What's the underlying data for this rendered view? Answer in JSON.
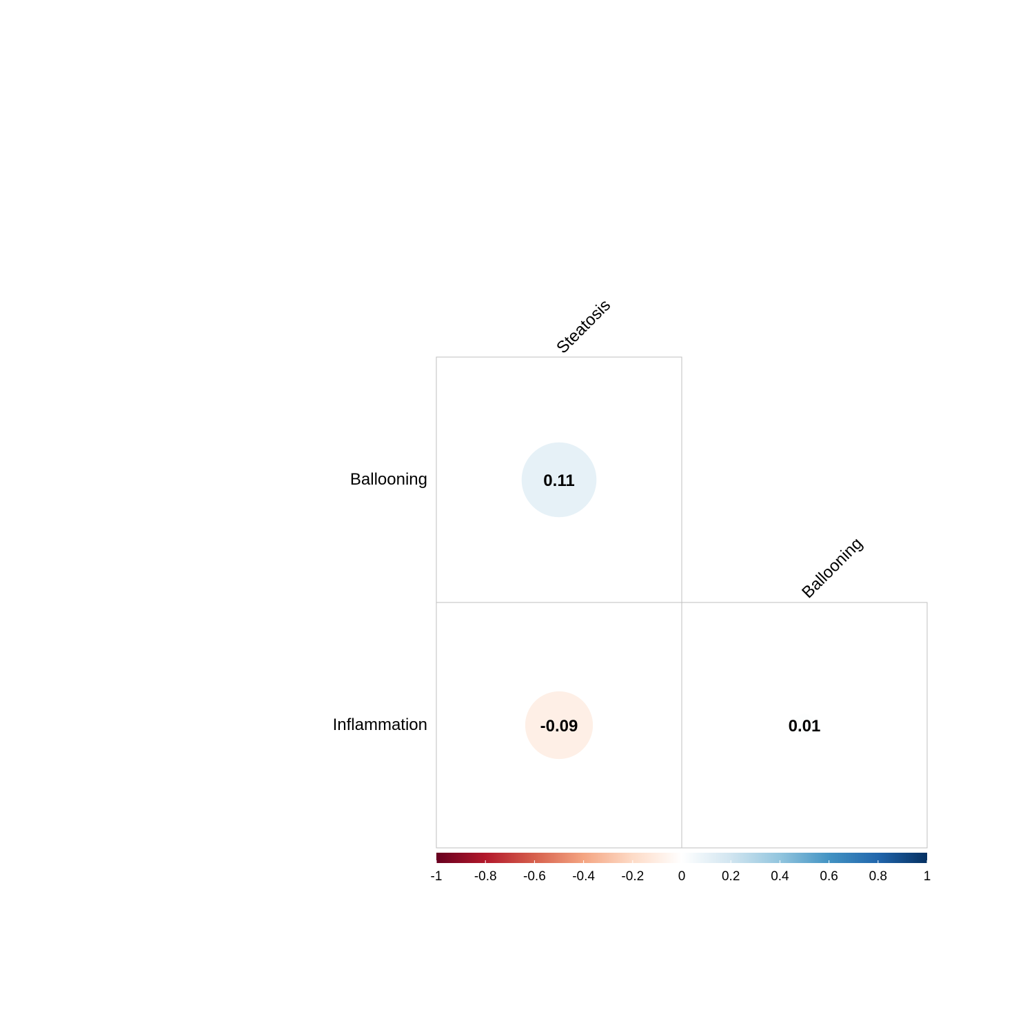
{
  "chart_data": {
    "type": "heatmap",
    "variables": [
      "Steatosis",
      "Ballooning",
      "Inflammation"
    ],
    "row_labels": [
      "Ballooning",
      "Inflammation"
    ],
    "col_labels": [
      "Steatosis",
      "Ballooning"
    ],
    "cells": [
      {
        "row": "Ballooning",
        "col": "Steatosis",
        "value": 0.11,
        "label": "0.11"
      },
      {
        "row": "Inflammation",
        "col": "Steatosis",
        "value": -0.09,
        "label": "-0.09"
      },
      {
        "row": "Inflammation",
        "col": "Ballooning",
        "value": 0.01,
        "label": "0.01"
      }
    ],
    "colorbar": {
      "range": [
        -1,
        1
      ],
      "ticks": [
        -1,
        -0.8,
        -0.6,
        -0.4,
        -0.2,
        0,
        0.2,
        0.4,
        0.6,
        0.8,
        1
      ],
      "tick_labels": [
        "-1",
        "-0.8",
        "-0.6",
        "-0.4",
        "-0.2",
        "0",
        "0.2",
        "0.4",
        "0.6",
        "0.8",
        "1"
      ],
      "colors": [
        "#67001F",
        "#B2182B",
        "#D6604D",
        "#F4A582",
        "#FDDBC7",
        "#FFFFFF",
        "#D1E5F0",
        "#92C5DE",
        "#4393C3",
        "#2166AC",
        "#053061"
      ]
    },
    "title": "",
    "xlabel": "",
    "ylabel": ""
  }
}
